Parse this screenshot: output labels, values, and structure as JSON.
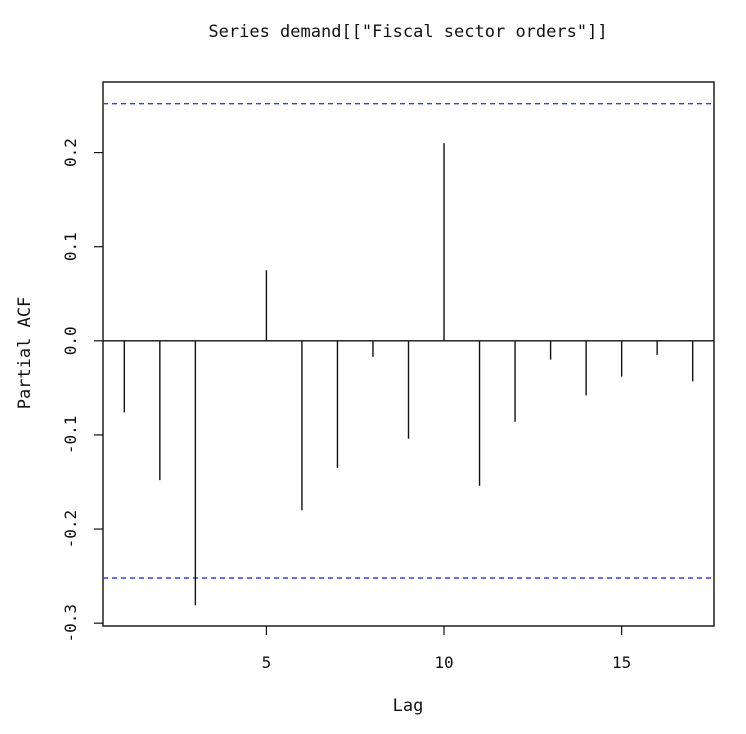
{
  "chart_data": {
    "type": "bar",
    "title": "Series  demand[[\"Fiscal sector orders\"]]",
    "xlabel": "Lag",
    "ylabel": "Partial ACF",
    "xlim": [
      0.4,
      17.6
    ],
    "ylim": [
      -0.303,
      0.275
    ],
    "x_ticks": [
      5,
      10,
      15
    ],
    "y_ticks": [
      -0.3,
      -0.2,
      -0.1,
      0.0,
      0.1,
      0.2
    ],
    "x_tick_labels": [
      "5",
      "10",
      "15"
    ],
    "y_tick_labels": [
      "-0.3",
      "-0.2",
      "-0.1",
      "0.0",
      "0.1",
      "0.2"
    ],
    "confidence_bound": 0.252,
    "confidence_color": "#3a3aff",
    "line_color": "#111111",
    "grid": false,
    "series": [
      {
        "lags": [
          1,
          2,
          3,
          4,
          5,
          6,
          7,
          8,
          9,
          10,
          11,
          12,
          13,
          14,
          15,
          16,
          17
        ],
        "values": [
          -0.076,
          -0.148,
          -0.281,
          0.0,
          0.075,
          -0.18,
          -0.135,
          -0.017,
          -0.104,
          0.21,
          -0.154,
          -0.086,
          -0.02,
          -0.058,
          -0.038,
          -0.015,
          -0.043
        ]
      }
    ]
  }
}
